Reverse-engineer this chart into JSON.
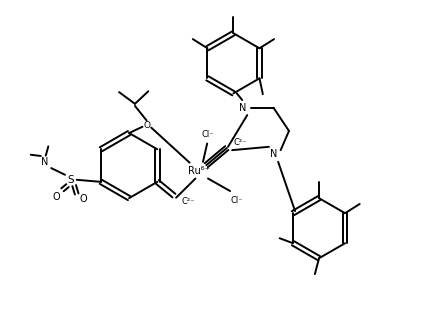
{
  "bg_color": "#ffffff",
  "line_color": "#000000",
  "line_width": 1.4,
  "font_size": 6.5,
  "figsize": [
    4.21,
    3.27
  ],
  "dpi": 100,
  "xlim": [
    0,
    10
  ],
  "ylim": [
    0,
    7.8
  ]
}
